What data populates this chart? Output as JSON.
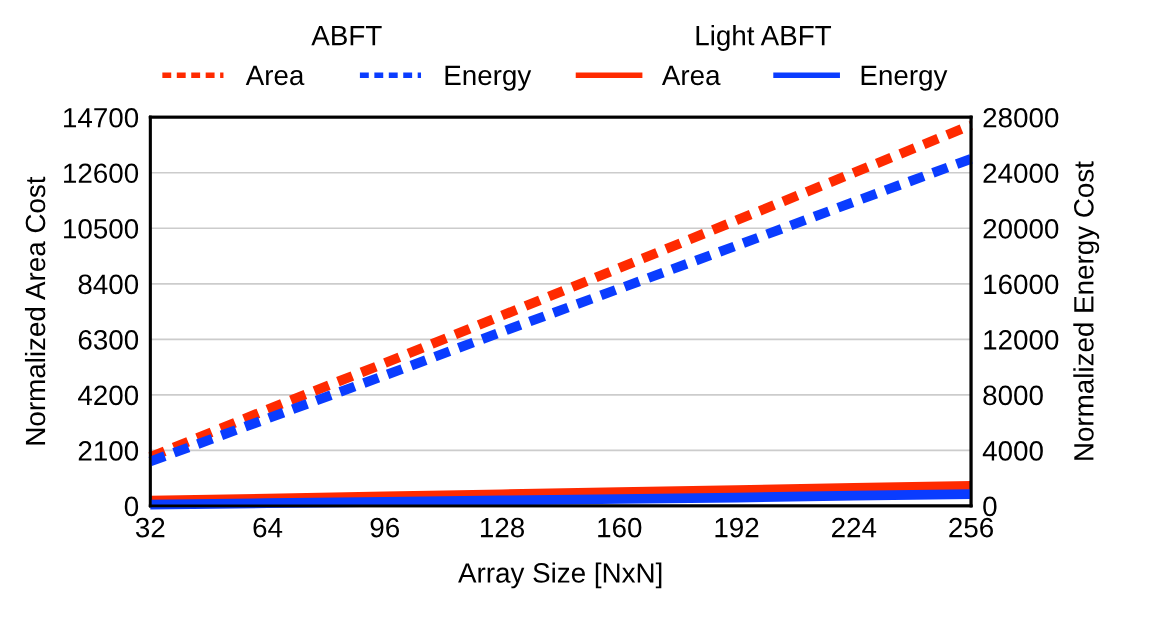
{
  "chart_data": {
    "type": "line",
    "xlabel": "Array Size [NxN]",
    "ylabel": "Normalized Area Cost",
    "y2label": "Normalized Energy Cost",
    "legend_title": [
      "ABFT",
      "Light ABFT"
    ],
    "x": [
      32,
      64,
      96,
      128,
      160,
      192,
      224,
      256
    ],
    "xlim": [
      32,
      256
    ],
    "xticks": [
      32,
      64,
      96,
      128,
      160,
      192,
      224,
      256
    ],
    "ylim": [
      0,
      14700
    ],
    "yticks": [
      0,
      2100,
      4200,
      6300,
      8400,
      10500,
      12600,
      14700
    ],
    "y2lim": [
      0,
      28000
    ],
    "y2ticks": [
      0,
      4000,
      8000,
      12000,
      16000,
      20000,
      24000,
      28000
    ],
    "grid": "y",
    "legend": "top",
    "marker": "none",
    "series": [
      {
        "name": "Area",
        "color": "#ff2a00",
        "line_style": "dashed",
        "values": [
          1850,
          3650,
          5400,
          7200,
          9000,
          10800,
          12600,
          14400
        ]
      },
      {
        "name": "Energy",
        "color": "#0a3cff",
        "line_style": "dashed",
        "axis": "y2",
        "values": [
          3200,
          6300,
          9400,
          12550,
          15650,
          18750,
          21900,
          25000
        ]
      },
      {
        "name": "Area",
        "color": "#ff2a00",
        "line_style": "solid",
        "values": [
          200,
          280,
          360,
          440,
          520,
          600,
          680,
          760
        ]
      },
      {
        "name": "Energy",
        "color": "#0a3cff",
        "line_style": "solid",
        "axis": "y2",
        "values": [
          100,
          200,
          300,
          400,
          500,
          600,
          750,
          850
        ]
      }
    ]
  }
}
